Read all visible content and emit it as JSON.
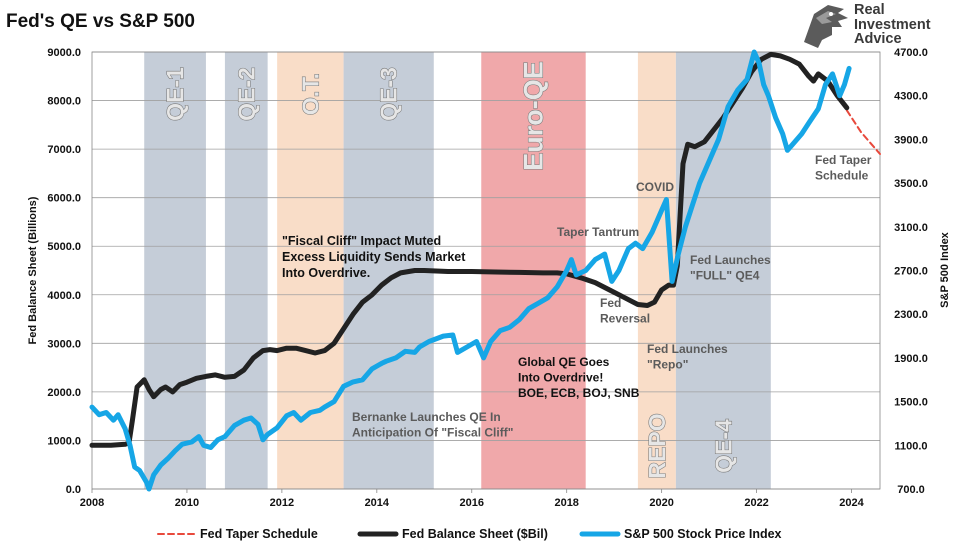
{
  "chart_data": {
    "type": "line",
    "title": "Fed's QE vs S&P 500",
    "ylabel_left": "Fed Balance Sheet (Billions)",
    "ylabel_right": "S&P 500 Index",
    "xlim": [
      2008,
      2024.6
    ],
    "ylim_left": [
      0,
      9000
    ],
    "ylim_right": [
      700,
      4700
    ],
    "x_ticks": [
      2008,
      2010,
      2012,
      2014,
      2016,
      2018,
      2020,
      2022,
      2024
    ],
    "y_ticks_left": [
      "0.0",
      "1000.0",
      "2000.0",
      "3000.0",
      "4000.0",
      "5000.0",
      "6000.0",
      "7000.0",
      "8000.0",
      "9000.0"
    ],
    "y_ticks_right": [
      "700.0",
      "1100.0",
      "1500.0",
      "1900.0",
      "2300.0",
      "2700.0",
      "3100.0",
      "3500.0",
      "3900.0",
      "4300.0",
      "4700.0"
    ],
    "grid": true,
    "legend_position": "bottom",
    "shaded_periods": [
      {
        "label": "QE-1",
        "start": 2009.1,
        "end": 2010.4,
        "color": "#c5cdd8"
      },
      {
        "label": "QE-2",
        "start": 2010.8,
        "end": 2011.7,
        "color": "#c5cdd8"
      },
      {
        "label": "O.T.",
        "start": 2011.9,
        "end": 2013.3,
        "color": "#f9ddc8"
      },
      {
        "label": "QE-3",
        "start": 2013.3,
        "end": 2015.2,
        "color": "#c5cdd8"
      },
      {
        "label": "Euro-QE",
        "start": 2016.2,
        "end": 2018.4,
        "color": "#f0a8aa"
      },
      {
        "label": "REPO",
        "start": 2019.5,
        "end": 2020.3,
        "color": "#f9ddc8"
      },
      {
        "label": "QE-4",
        "start": 2020.3,
        "end": 2022.3,
        "color": "#c5cdd8"
      }
    ],
    "series": [
      {
        "name": "Fed Taper Schedule",
        "axis": "left",
        "color": "#e8493c",
        "style": "dashed",
        "x": [
          2023.9,
          2024.2,
          2024.6
        ],
        "y": [
          7800,
          7350,
          6900
        ]
      },
      {
        "name": "Fed Balance Sheet ($Bil)",
        "axis": "left",
        "color": "#222222",
        "style": "solid",
        "x": [
          2008.0,
          2008.4,
          2008.7,
          2008.78,
          2008.85,
          2008.95,
          2009.1,
          2009.2,
          2009.3,
          2009.45,
          2009.55,
          2009.7,
          2009.85,
          2010.0,
          2010.2,
          2010.4,
          2010.6,
          2010.8,
          2011.0,
          2011.2,
          2011.4,
          2011.6,
          2011.75,
          2011.9,
          2012.1,
          2012.3,
          2012.5,
          2012.7,
          2012.9,
          2013.1,
          2013.3,
          2013.5,
          2013.7,
          2013.9,
          2014.1,
          2014.3,
          2014.5,
          2014.8,
          2015.0,
          2015.5,
          2016.0,
          2016.5,
          2017.0,
          2017.5,
          2017.8,
          2018.0,
          2018.3,
          2018.6,
          2018.9,
          2019.2,
          2019.5,
          2019.7,
          2019.85,
          2020.0,
          2020.15,
          2020.25,
          2020.33,
          2020.45,
          2020.55,
          2020.7,
          2020.9,
          2021.1,
          2021.3,
          2021.5,
          2021.7,
          2021.9,
          2022.1,
          2022.3,
          2022.5,
          2022.7,
          2022.9,
          2023.1,
          2023.2,
          2023.3,
          2023.5,
          2023.7,
          2023.9
        ],
        "y": [
          900,
          900,
          920,
          950,
          1400,
          2100,
          2250,
          2050,
          1900,
          2050,
          2100,
          2000,
          2150,
          2200,
          2280,
          2320,
          2350,
          2300,
          2320,
          2450,
          2700,
          2850,
          2870,
          2850,
          2900,
          2900,
          2850,
          2800,
          2850,
          3000,
          3300,
          3600,
          3850,
          4000,
          4200,
          4350,
          4450,
          4500,
          4500,
          4480,
          4480,
          4470,
          4460,
          4450,
          4450,
          4430,
          4350,
          4250,
          4100,
          3950,
          3800,
          3780,
          3850,
          4100,
          4200,
          4200,
          4600,
          6700,
          7100,
          7050,
          7150,
          7400,
          7650,
          7950,
          8250,
          8600,
          8850,
          8950,
          8920,
          8850,
          8750,
          8500,
          8400,
          8550,
          8400,
          8100,
          7850
        ]
      },
      {
        "name": "S&P 500 Stock Price Index",
        "axis": "right",
        "color": "#16a6e6",
        "style": "solid",
        "x": [
          2008.0,
          2008.15,
          2008.3,
          2008.45,
          2008.55,
          2008.7,
          2008.8,
          2008.9,
          2009.0,
          2009.15,
          2009.2,
          2009.3,
          2009.45,
          2009.6,
          2009.75,
          2009.9,
          2010.1,
          2010.25,
          2010.35,
          2010.5,
          2010.65,
          2010.8,
          2011.0,
          2011.2,
          2011.35,
          2011.5,
          2011.6,
          2011.7,
          2011.9,
          2012.1,
          2012.25,
          2012.4,
          2012.6,
          2012.8,
          2012.9,
          2013.1,
          2013.3,
          2013.5,
          2013.7,
          2013.9,
          2014.1,
          2014.2,
          2014.4,
          2014.6,
          2014.8,
          2014.9,
          2015.1,
          2015.4,
          2015.6,
          2015.7,
          2015.9,
          2016.1,
          2016.25,
          2016.4,
          2016.6,
          2016.8,
          2017.0,
          2017.2,
          2017.4,
          2017.6,
          2017.8,
          2018.0,
          2018.1,
          2018.2,
          2018.4,
          2018.6,
          2018.8,
          2018.95,
          2019.1,
          2019.3,
          2019.45,
          2019.6,
          2019.8,
          2020.0,
          2020.1,
          2020.22,
          2020.35,
          2020.5,
          2020.65,
          2020.8,
          2021.0,
          2021.2,
          2021.4,
          2021.6,
          2021.8,
          2021.95,
          2022.05,
          2022.15,
          2022.25,
          2022.4,
          2022.55,
          2022.65,
          2022.75,
          2022.95,
          2023.1,
          2023.3,
          2023.45,
          2023.6,
          2023.75,
          2023.85,
          2023.95
        ],
        "y": [
          1450,
          1380,
          1400,
          1330,
          1380,
          1250,
          1100,
          900,
          870,
          760,
          700,
          830,
          920,
          980,
          1050,
          1110,
          1130,
          1180,
          1100,
          1080,
          1150,
          1180,
          1280,
          1330,
          1350,
          1290,
          1150,
          1200,
          1260,
          1370,
          1400,
          1330,
          1400,
          1420,
          1450,
          1500,
          1640,
          1680,
          1700,
          1800,
          1850,
          1870,
          1900,
          1960,
          1950,
          2000,
          2050,
          2100,
          2110,
          1950,
          2000,
          2050,
          1900,
          2050,
          2150,
          2180,
          2250,
          2350,
          2400,
          2450,
          2550,
          2700,
          2800,
          2660,
          2700,
          2800,
          2850,
          2600,
          2700,
          2900,
          2950,
          2900,
          3050,
          3250,
          3350,
          2600,
          2850,
          3100,
          3300,
          3500,
          3700,
          3900,
          4200,
          4350,
          4450,
          4700,
          4600,
          4400,
          4300,
          4100,
          3950,
          3800,
          3850,
          3950,
          4050,
          4180,
          4400,
          4500,
          4300,
          4400,
          4550
        ]
      }
    ],
    "annotations": [
      {
        "text": "\"Fiscal Cliff\" Impact Muted\nExcess Liquidity Sends Market\nInto Overdrive.",
        "color": "#111111"
      },
      {
        "text": "Bernanke Launches QE In\nAnticipation Of \"Fiscal Cliff\"",
        "color": "#5b5b5b"
      },
      {
        "text": "Taper Tantrum",
        "color": "#5b5b5b"
      },
      {
        "text": "COVID",
        "color": "#5b5b5b"
      },
      {
        "text": "Fed\nReversal",
        "color": "#5b5b5b"
      },
      {
        "text": "Fed Launches\n\"FULL\" QE4",
        "color": "#5b5b5b"
      },
      {
        "text": "Fed Launches\n\"Repo\"",
        "color": "#5b5b5b"
      },
      {
        "text": "Global QE Goes\nInto Overdrive!\nBOE, ECB, BOJ, SNB",
        "color": "#111111"
      },
      {
        "text": "Fed Taper\nSchedule",
        "color": "#5b5b5b"
      }
    ]
  },
  "logo": {
    "lines": [
      "Real",
      "Investment",
      "Advice"
    ],
    "icon": "eagle-head-icon"
  }
}
